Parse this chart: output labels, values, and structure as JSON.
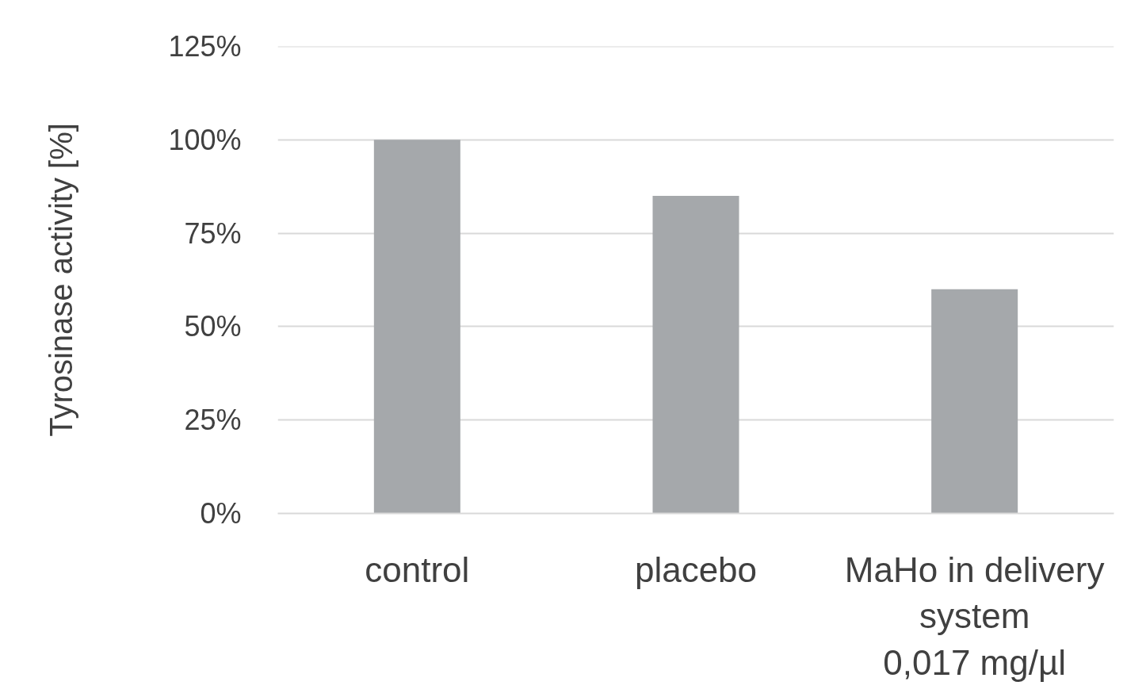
{
  "chart_data": {
    "type": "bar",
    "ylabel": "Tyrosinase activity [%]",
    "categories": [
      "control",
      "placebo",
      "MaHo in delivery\nsystem\n0,017 mg/µl"
    ],
    "values": [
      100,
      85,
      60
    ],
    "color": "#a5a8ab",
    "ylim": [
      0,
      125
    ],
    "yticks": [
      {
        "value": 0,
        "label": "0%"
      },
      {
        "value": 25,
        "label": "25%"
      },
      {
        "value": 50,
        "label": "50%"
      },
      {
        "value": 75,
        "label": "75%"
      },
      {
        "value": 100,
        "label": "100%"
      },
      {
        "value": 125,
        "label": "125%"
      }
    ],
    "grid": "y"
  }
}
